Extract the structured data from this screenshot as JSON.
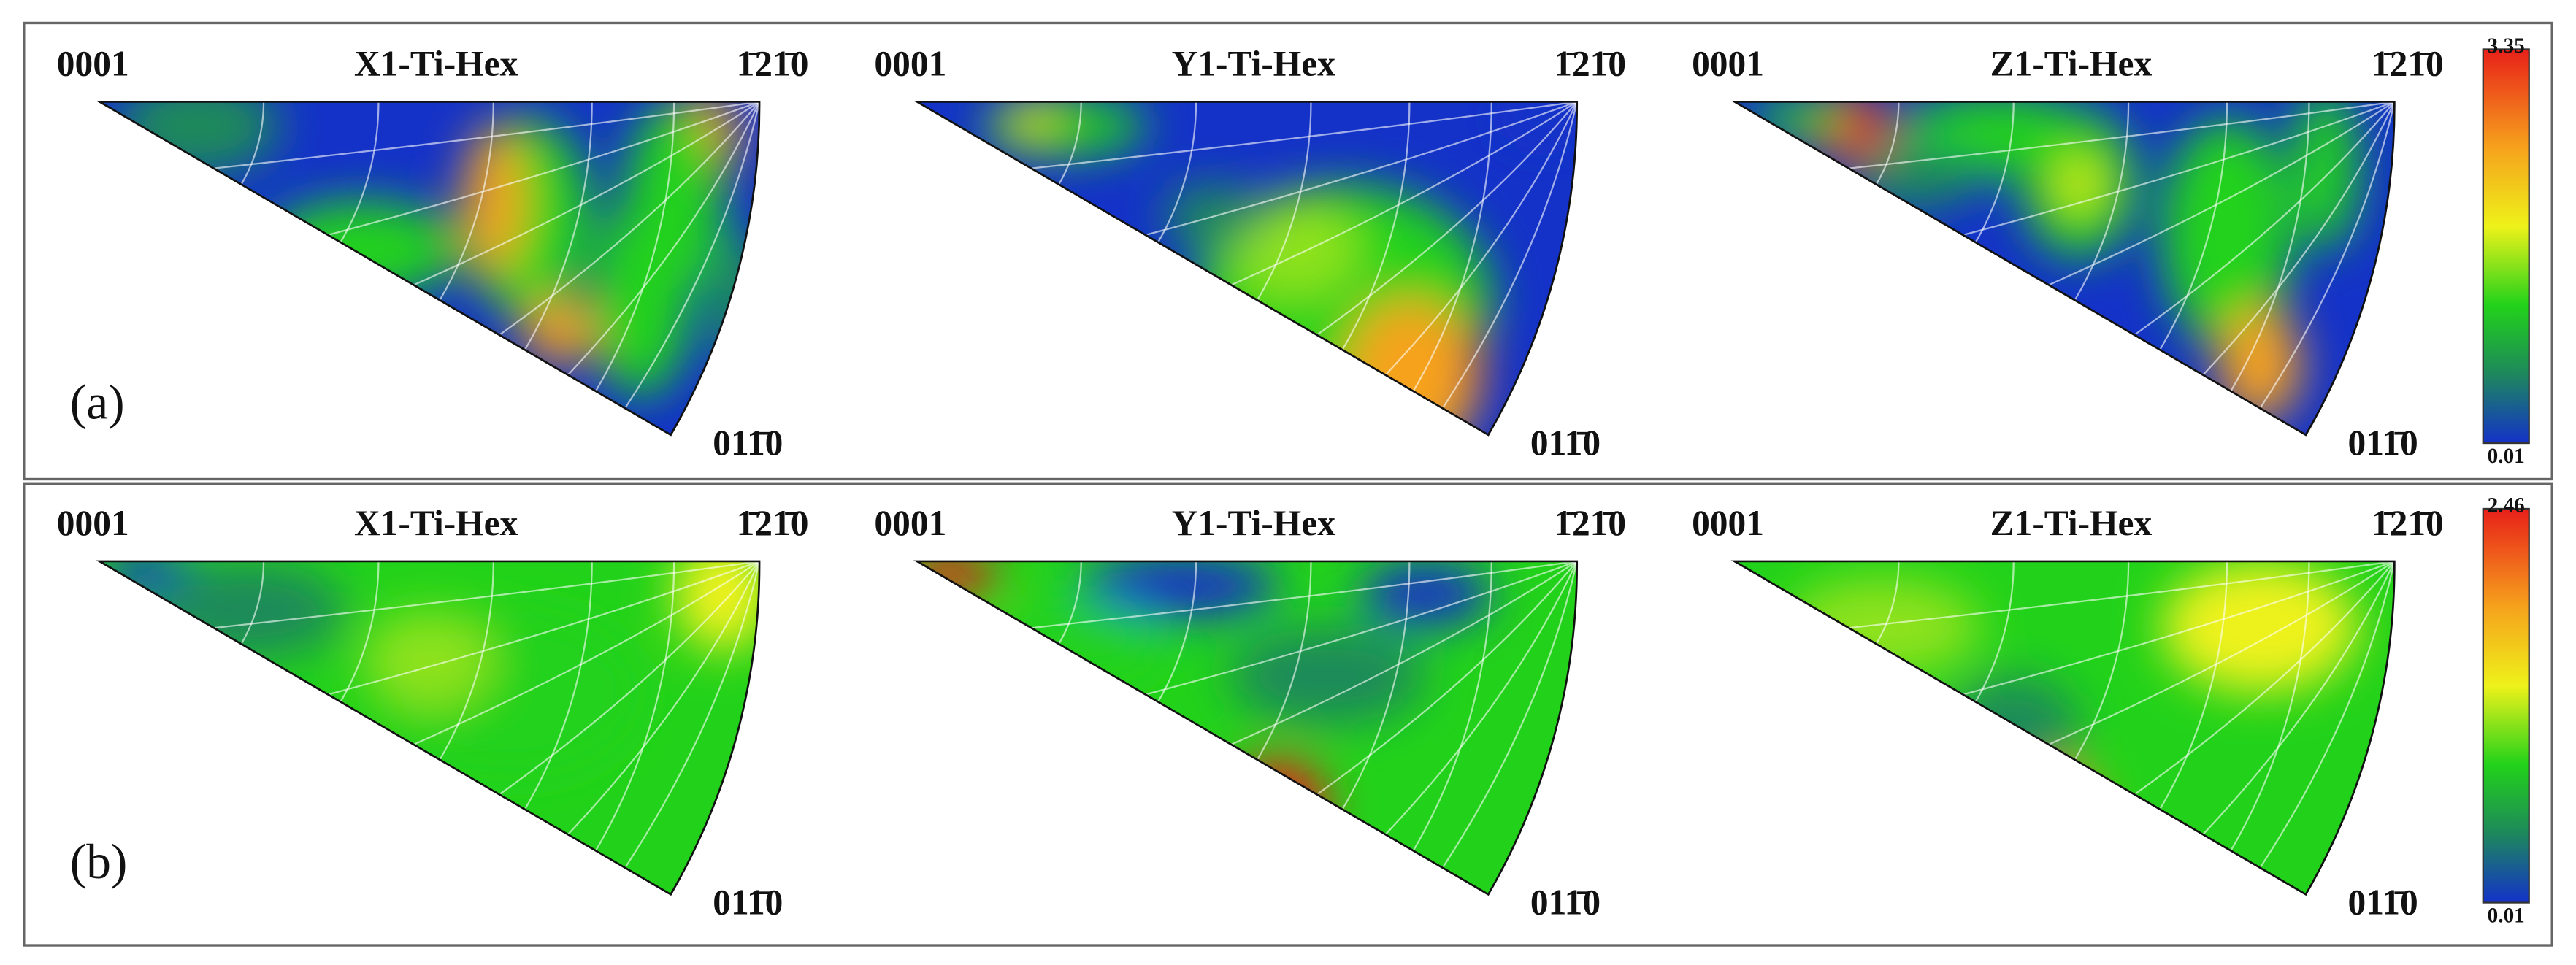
{
  "rows": [
    {
      "label": "(a)",
      "panels": [
        {
          "title": "X1-Ti-Hex",
          "top_left": "0001",
          "top_right": "1̄21̄0",
          "bottom": "011̄0"
        },
        {
          "title": "Y1-Ti-Hex",
          "top_left": "0001",
          "top_right": "1̄21̄0",
          "bottom": "011̄0"
        },
        {
          "title": "Z1-Ti-Hex",
          "top_left": "0001",
          "top_right": "1̄21̄0",
          "bottom": "011̄0"
        }
      ],
      "colorbar": {
        "max": "3.35",
        "min": "0.01"
      }
    },
    {
      "label": "(b)",
      "panels": [
        {
          "title": "X1-Ti-Hex",
          "top_left": "0001",
          "top_right": "1̄21̄0",
          "bottom": "011̄0"
        },
        {
          "title": "Y1-Ti-Hex",
          "top_left": "0001",
          "top_right": "1̄21̄0",
          "bottom": "011̄0"
        },
        {
          "title": "Z1-Ti-Hex",
          "top_left": "0001",
          "top_right": "1̄21̄0",
          "bottom": "011̄0"
        }
      ],
      "colorbar": {
        "max": "2.46",
        "min": "0.01"
      }
    }
  ]
}
